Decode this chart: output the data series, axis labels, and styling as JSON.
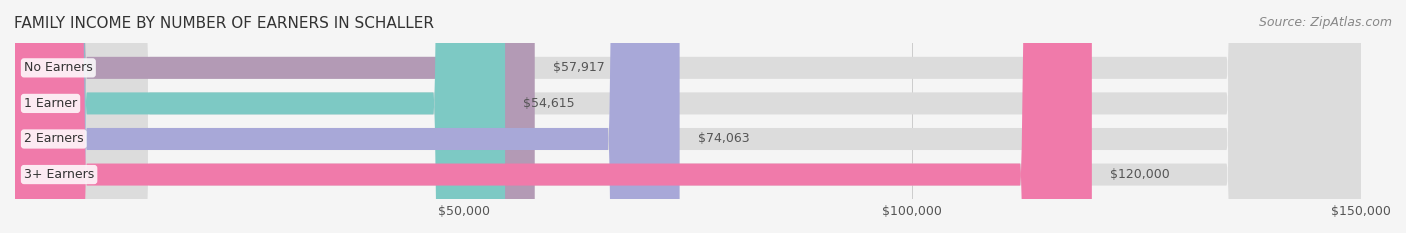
{
  "title": "FAMILY INCOME BY NUMBER OF EARNERS IN SCHALLER",
  "source": "Source: ZipAtlas.com",
  "categories": [
    "No Earners",
    "1 Earner",
    "2 Earners",
    "3+ Earners"
  ],
  "values": [
    57917,
    54615,
    74063,
    120000
  ],
  "bar_colors": [
    "#b39ab5",
    "#7dc9c4",
    "#a8a8d8",
    "#f07aaa"
  ],
  "bar_bg_color": "#e8e8e8",
  "label_values": [
    "$57,917",
    "$54,615",
    "$74,063",
    "$120,000"
  ],
  "xlim": [
    0,
    150000
  ],
  "xticks": [
    50000,
    100000,
    150000
  ],
  "xtick_labels": [
    "$50,000",
    "$100,000",
    "$150,000"
  ],
  "title_fontsize": 11,
  "source_fontsize": 9,
  "bar_label_fontsize": 9,
  "category_fontsize": 9,
  "background_color": "#f5f5f5",
  "bar_height": 0.62,
  "bar_bg_alpha": 0.5
}
